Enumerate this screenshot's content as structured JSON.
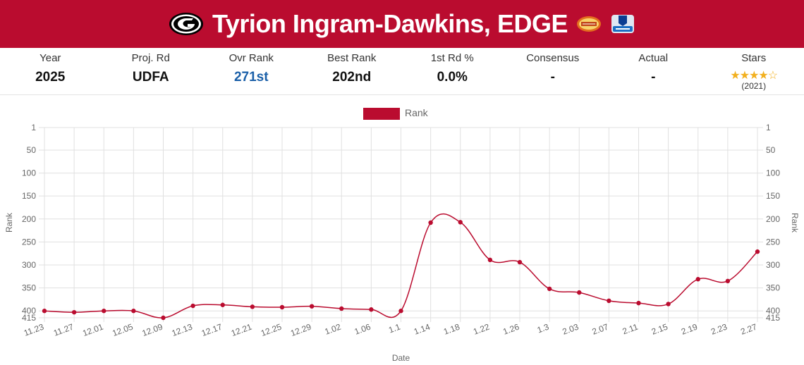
{
  "header": {
    "player_title": "Tyrion Ingram-Dawkins, EDGE",
    "team_logo_icon": "georgia-g-logo-icon",
    "badges": [
      "senior-bowl-badge-icon",
      "nfl-combine-badge-icon"
    ],
    "brand_color": "#ba0c2f"
  },
  "stats": {
    "year": {
      "label": "Year",
      "value": "2025"
    },
    "proj_rd": {
      "label": "Proj. Rd",
      "value": "UDFA"
    },
    "ovr_rank": {
      "label": "Ovr Rank",
      "value": "271st"
    },
    "best_rank": {
      "label": "Best Rank",
      "value": "202nd"
    },
    "first_rd": {
      "label": "1st Rd %",
      "value": "0.0%"
    },
    "consensus": {
      "label": "Consensus",
      "value": "-"
    },
    "actual": {
      "label": "Actual",
      "value": "-"
    },
    "stars": {
      "label": "Stars",
      "rating": 4,
      "max": 5,
      "year": "(2021)"
    }
  },
  "chart_data": {
    "type": "line",
    "x": [
      "11.23",
      "11.27",
      "12.01",
      "12.05",
      "12.09",
      "12.13",
      "12.17",
      "12.21",
      "12.25",
      "12.29",
      "1.02",
      "1.06",
      "1.1",
      "1.14",
      "1.18",
      "1.22",
      "1.26",
      "1.3",
      "2.03",
      "2.07",
      "2.11",
      "2.15",
      "2.19",
      "2.23",
      "2.27"
    ],
    "series": [
      {
        "name": "Rank",
        "color": "#ba0c2f",
        "values": [
          400,
          403,
          400,
          400,
          415,
          389,
          387,
          391,
          392,
          390,
          395,
          397,
          400,
          208,
          207,
          289,
          294,
          352,
          360,
          378,
          383,
          385,
          331,
          335,
          271
        ]
      }
    ],
    "xlabel": "Date",
    "ylabel": "Rank",
    "y_ticks": [
      1,
      50,
      100,
      150,
      200,
      250,
      300,
      350,
      400,
      415
    ],
    "ylim": [
      1,
      415
    ],
    "y_reversed": true,
    "grid": true,
    "legend": "top-center"
  }
}
